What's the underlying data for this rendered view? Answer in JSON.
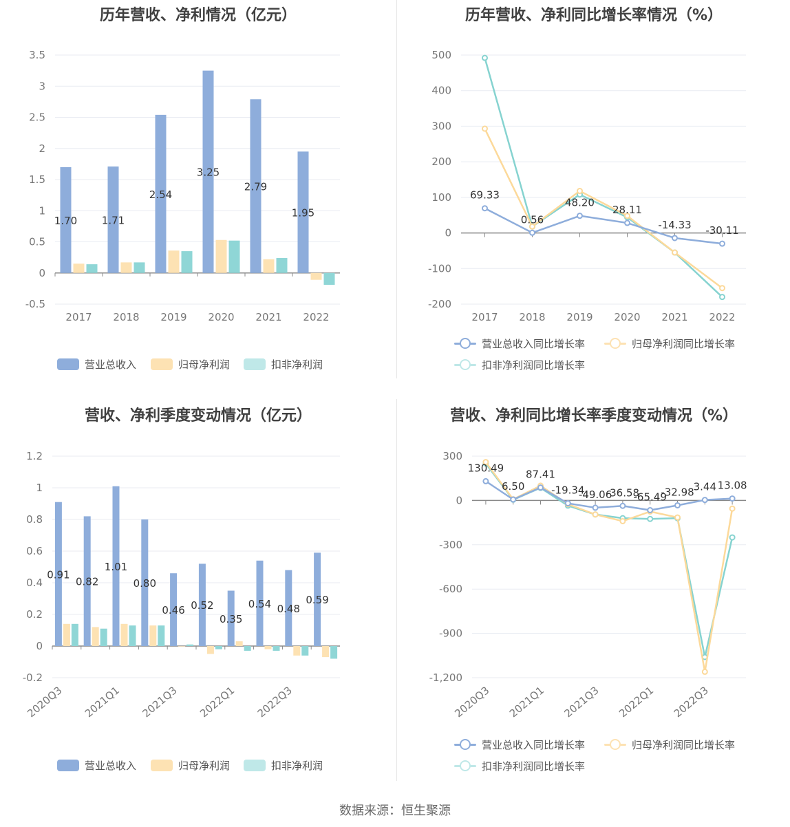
{
  "footer": {
    "source": "数据来源：恒生聚源"
  },
  "colors": {
    "revenue": "#8eaddb",
    "parent": "#fde2b3",
    "deducted": "#8fd6d6",
    "rev_line": "#8eaddb",
    "par_line": "#fcd99a",
    "ded_line": "#86d3d0",
    "grid": "#e8ebf2",
    "axis": "#888888"
  },
  "chart_data": [
    {
      "id": "annual_values",
      "type": "bar",
      "title": "历年营收、净利情况（亿元）",
      "categories": [
        "2017",
        "2018",
        "2019",
        "2020",
        "2021",
        "2022"
      ],
      "series": [
        {
          "name": "营业总收入",
          "values": [
            1.7,
            1.71,
            2.54,
            3.25,
            2.79,
            1.95
          ],
          "labels": [
            "1.70",
            "1.71",
            "2.54",
            "3.25",
            "2.79",
            "1.95"
          ]
        },
        {
          "name": "归母净利润",
          "values": [
            0.15,
            0.17,
            0.36,
            0.53,
            0.22,
            -0.11
          ]
        },
        {
          "name": "扣非净利润",
          "values": [
            0.14,
            0.17,
            0.35,
            0.52,
            0.24,
            -0.19
          ]
        }
      ],
      "yticks": [
        "3.5",
        "3",
        "2.5",
        "2",
        "1.5",
        "1",
        "0.5",
        "0",
        "-0.5"
      ],
      "ylim": [
        -0.5,
        3.5
      ],
      "legend": "bottom"
    },
    {
      "id": "annual_growth",
      "type": "line",
      "title": "历年营收、净利同比增长率情况（%）",
      "categories": [
        "2017",
        "2018",
        "2019",
        "2020",
        "2021",
        "2022"
      ],
      "series": [
        {
          "name": "营业总收入同比增长率",
          "values": [
            69.33,
            0.56,
            48.2,
            28.11,
            -14.33,
            -30.11
          ],
          "labels": [
            "69.33",
            "0.56",
            "48.20",
            "28.11",
            "-14.33",
            "-30.11"
          ]
        },
        {
          "name": "归母净利润同比增长率",
          "values": [
            293,
            18,
            118,
            48,
            -55,
            -155
          ]
        },
        {
          "name": "扣非净利润同比增长率",
          "values": [
            492,
            18,
            108,
            44,
            -55,
            -180
          ]
        }
      ],
      "yticks": [
        "500",
        "400",
        "300",
        "200",
        "100",
        "0",
        "-100",
        "-200"
      ],
      "ylim": [
        -200,
        500
      ],
      "legend": "bottom"
    },
    {
      "id": "quarterly_values",
      "type": "bar",
      "title": "营收、净利季度变动情况（亿元）",
      "categories": [
        "2020Q3",
        "2020Q4",
        "2021Q1",
        "2021Q2",
        "2021Q3",
        "2021Q4",
        "2022Q1",
        "2022Q2",
        "2022Q3",
        "2022Q4"
      ],
      "xtick_labels": [
        "2020Q3",
        "",
        "2021Q1",
        "",
        "2021Q3",
        "",
        "2022Q1",
        "",
        "2022Q3",
        ""
      ],
      "series": [
        {
          "name": "营业总收入",
          "values": [
            0.91,
            0.82,
            1.01,
            0.8,
            0.46,
            0.52,
            0.35,
            0.54,
            0.48,
            0.59
          ],
          "labels": [
            "0.91",
            "0.82",
            "1.01",
            "0.80",
            "0.46",
            "0.52",
            "0.35",
            "0.54",
            "0.48",
            "0.59"
          ]
        },
        {
          "name": "归母净利润",
          "values": [
            0.14,
            0.12,
            0.14,
            0.13,
            0.0,
            -0.05,
            0.03,
            -0.02,
            -0.06,
            -0.07
          ]
        },
        {
          "name": "扣非净利润",
          "values": [
            0.14,
            0.11,
            0.13,
            0.13,
            0.01,
            -0.02,
            -0.03,
            -0.03,
            -0.06,
            -0.08
          ]
        }
      ],
      "yticks": [
        "1.2",
        "1",
        "0.8",
        "0.6",
        "0.4",
        "0.2",
        "0",
        "-0.2"
      ],
      "ylim": [
        -0.2,
        1.2
      ],
      "legend": "bottom"
    },
    {
      "id": "quarterly_growth",
      "type": "line",
      "title": "营收、净利同比增长率季度变动情况（%）",
      "categories": [
        "2020Q3",
        "2020Q4",
        "2021Q1",
        "2021Q2",
        "2021Q3",
        "2021Q4",
        "2022Q1",
        "2022Q2",
        "2022Q3",
        "2022Q4"
      ],
      "xtick_labels": [
        "2020Q3",
        "",
        "2021Q1",
        "",
        "2021Q3",
        "",
        "2022Q1",
        "",
        "2022Q3",
        ""
      ],
      "series": [
        {
          "name": "营业总收入同比增长率",
          "values": [
            130.49,
            6.5,
            87.41,
            -19.34,
            -49.06,
            -36.58,
            -65.49,
            -32.98,
            3.44,
            13.08
          ],
          "labels": [
            "130.49",
            "6.50",
            "87.41",
            "-19.34",
            "-49.06",
            "-36.58",
            "-65.49",
            "-32.98",
            "3.44",
            "13.08"
          ]
        },
        {
          "name": "归母净利润同比增长率",
          "values": [
            260,
            8,
            100,
            -25,
            -95,
            -140,
            -75,
            -115,
            -1160,
            -55
          ]
        },
        {
          "name": "扣非净利润同比增长率",
          "values": [
            250,
            5,
            85,
            -35,
            -95,
            -120,
            -125,
            -120,
            -1060,
            -250
          ]
        }
      ],
      "yticks": [
        "300",
        "0",
        "-300",
        "-600",
        "-900",
        "-1,200"
      ],
      "ylim": [
        -1200,
        300
      ],
      "legend": "bottom"
    }
  ]
}
